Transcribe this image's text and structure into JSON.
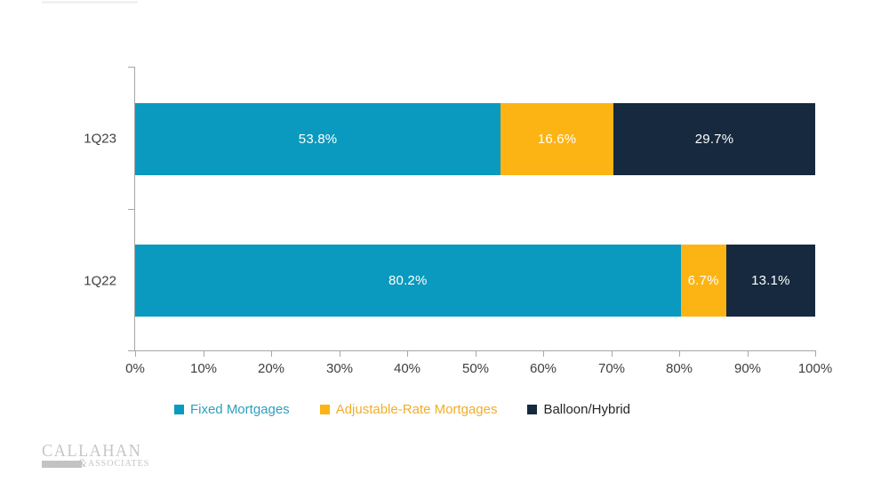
{
  "chart_data": {
    "type": "bar",
    "orientation": "horizontal-stacked",
    "title": "",
    "categories": [
      "1Q23",
      "1Q22"
    ],
    "series": [
      {
        "name": "Fixed Mortgages",
        "color": "#0a9abf",
        "legend_text_color": "#2e9fbe",
        "values": [
          53.8,
          80.2
        ],
        "labels": [
          "53.8%",
          "80.2%"
        ]
      },
      {
        "name": "Adjustable-Rate Mortgages",
        "color": "#fcb415",
        "legend_text_color": "#f0ae2a",
        "values": [
          16.6,
          6.7
        ],
        "labels": [
          "16.6%",
          "6.7%"
        ]
      },
      {
        "name": "Balloon/Hybrid",
        "color": "#16293e",
        "legend_text_color": "#262626",
        "values": [
          29.7,
          13.1
        ],
        "labels": [
          "29.7%",
          "13.1%"
        ]
      }
    ],
    "xlim": [
      0,
      100
    ],
    "x_ticks": [
      "0%",
      "10%",
      "20%",
      "30%",
      "40%",
      "50%",
      "60%",
      "70%",
      "80%",
      "90%",
      "100%"
    ],
    "grid": false,
    "legend_position": "bottom",
    "data_label_color": "#ffffff",
    "axis_line_color": "#a6a6a6",
    "tick_label_color": "#404040"
  },
  "logo": {
    "line1": "CALLAHAN",
    "ampersand": "&",
    "line2": "ASSOCIATES"
  }
}
